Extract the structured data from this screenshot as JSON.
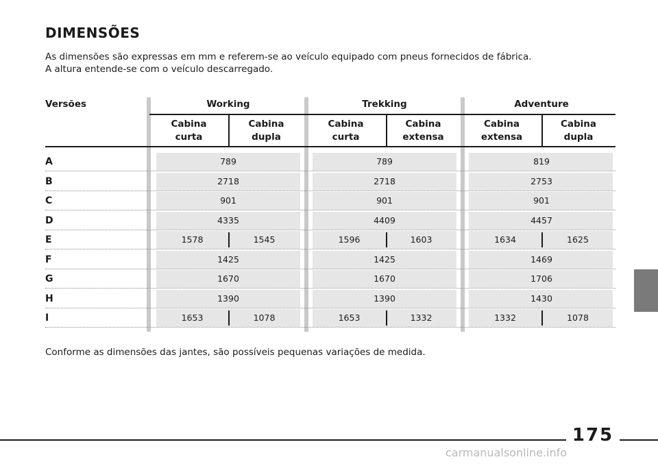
{
  "title": "DIMENSÕES",
  "intro_lines": [
    "As dimensões são expressas em mm e referem-se ao veículo equipado com pneus fornecidos de fábrica.",
    "A altura entende-se com o veículo descarregado."
  ],
  "table": {
    "row_header": "Versões",
    "groups": [
      "Working",
      "Trekking",
      "Adventure"
    ],
    "subheaders": [
      [
        "Cabina",
        "curta"
      ],
      [
        "Cabina",
        "dupla"
      ],
      [
        "Cabina",
        "curta"
      ],
      [
        "Cabina",
        "extensa"
      ],
      [
        "Cabina",
        "extensa"
      ],
      [
        "Cabina",
        "dupla"
      ]
    ],
    "rows": [
      {
        "label": "A",
        "values": [
          [
            "789"
          ],
          [
            "789"
          ],
          [
            "819"
          ]
        ]
      },
      {
        "label": "B",
        "values": [
          [
            "2718"
          ],
          [
            "2718"
          ],
          [
            "2753"
          ]
        ]
      },
      {
        "label": "C",
        "values": [
          [
            "901"
          ],
          [
            "901"
          ],
          [
            "901"
          ]
        ]
      },
      {
        "label": "D",
        "values": [
          [
            "4335"
          ],
          [
            "4409"
          ],
          [
            "4457"
          ]
        ]
      },
      {
        "label": "E",
        "values": [
          [
            "1578",
            "1545"
          ],
          [
            "1596",
            "1603"
          ],
          [
            "1634",
            "1625"
          ]
        ]
      },
      {
        "label": "F",
        "values": [
          [
            "1425"
          ],
          [
            "1425"
          ],
          [
            "1469"
          ]
        ]
      },
      {
        "label": "G",
        "values": [
          [
            "1670"
          ],
          [
            "1670"
          ],
          [
            "1706"
          ]
        ]
      },
      {
        "label": "H",
        "values": [
          [
            "1390"
          ],
          [
            "1390"
          ],
          [
            "1430"
          ]
        ]
      },
      {
        "label": "I",
        "values": [
          [
            "1653",
            "1078"
          ],
          [
            "1653",
            "1332"
          ],
          [
            "1332",
            "1078"
          ]
        ]
      }
    ]
  },
  "footnote": "Conforme as dimensões das jantes, são possíveis pequenas variações de medida.",
  "page_number": "175",
  "watermark": "carmanualsonline.info",
  "colors": {
    "band": "#e6e6e6",
    "separator": "#c9c9c9",
    "side_tab": "#7a7a7a"
  }
}
